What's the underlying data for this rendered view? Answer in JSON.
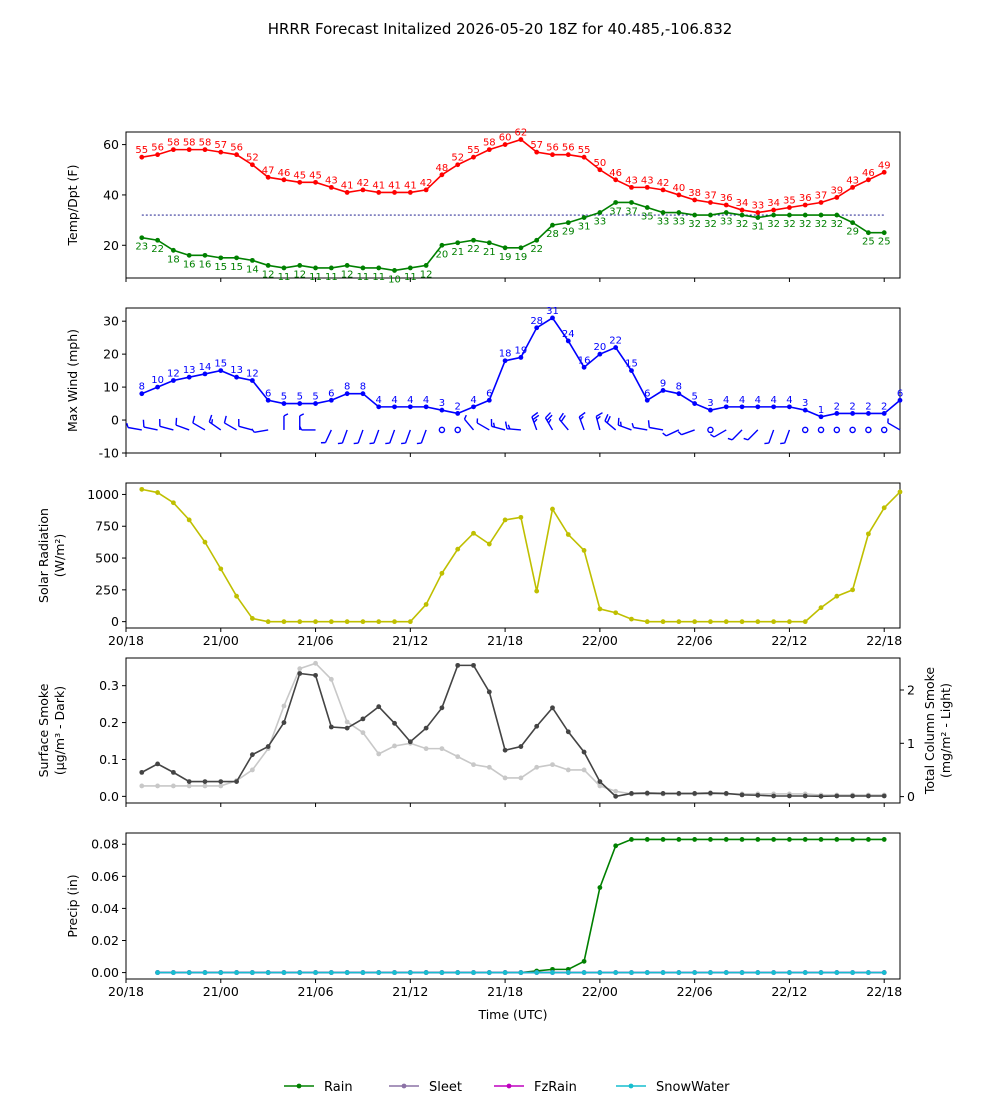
{
  "page": {
    "title": "HRRR Forecast Initalized 2026-05-20 18Z for 40.485,-106.832",
    "xlabel": "Time (UTC)"
  },
  "colors": {
    "temp": "#ff0000",
    "dewpoint": "#008000",
    "wind": "#0000ff",
    "solar": "#bfbf00",
    "smoke_dark": "#444444",
    "smoke_light": "#c8c8c8",
    "rain": "#008000",
    "sleet": "#8c72a6",
    "fzrain": "#bf00bf",
    "snowwater": "#17becf"
  },
  "legend": {
    "items": [
      {
        "label": "Rain",
        "color": "#008000"
      },
      {
        "label": "Sleet",
        "color": "#8c72a6"
      },
      {
        "label": "FzRain",
        "color": "#bf00bf"
      },
      {
        "label": "SnowWater",
        "color": "#17becf"
      }
    ]
  },
  "chart_data": [
    {
      "id": "temp",
      "type": "line",
      "ylabel": [
        "Temp/Dpt (F)"
      ],
      "ylim": [
        7,
        65
      ],
      "yticks": [
        20,
        40,
        60
      ],
      "xlim": [
        0,
        49
      ],
      "xticks": [
        0,
        6,
        12,
        18,
        24,
        30,
        36,
        42,
        48
      ],
      "xticklabels": [],
      "hline": 32,
      "series": [
        {
          "key": "temp",
          "x_start": 1,
          "values": [
            55,
            56,
            58,
            58,
            58,
            57,
            56,
            52,
            47,
            46,
            45,
            45,
            43,
            41,
            42,
            41,
            41,
            41,
            42,
            48,
            52,
            55,
            58,
            60,
            62,
            57,
            56,
            56,
            55,
            50,
            46,
            43,
            43,
            42,
            40,
            38,
            37,
            36,
            34,
            33,
            34,
            35,
            36,
            37,
            39,
            43,
            46,
            49
          ],
          "labels": [
            "55",
            "56",
            "58",
            "58",
            "58",
            "57",
            "56",
            "52",
            "47",
            "46",
            "45",
            "45",
            "43",
            "41",
            "42",
            "41",
            "41",
            "41",
            "42",
            "48",
            "52",
            "55",
            "58",
            "60",
            "62",
            "57",
            "56",
            "56",
            "55",
            "50",
            "46",
            "43",
            "43",
            "42",
            "40",
            "38",
            "37",
            "36",
            "34",
            "33",
            "34",
            "35",
            "36",
            "37",
            "39",
            "43",
            "46",
            "49"
          ]
        },
        {
          "key": "dewpoint",
          "x_start": 1,
          "values": [
            23,
            22,
            18,
            16,
            16,
            15,
            15,
            14,
            12,
            11,
            12,
            11,
            11,
            12,
            11,
            11,
            10,
            11,
            12,
            20,
            21,
            22,
            21,
            19,
            19,
            22,
            28,
            29,
            31,
            33,
            37,
            37,
            35,
            33,
            33,
            32,
            32,
            33,
            32,
            31,
            32,
            32,
            32,
            32,
            32,
            29,
            25,
            25
          ],
          "labels": [
            "23",
            "22",
            "18",
            "16",
            "16",
            "15",
            "15",
            "14",
            "12",
            "11",
            "12",
            "11",
            "11",
            "12",
            "11",
            "11",
            "10",
            "11",
            "12",
            "20",
            "21",
            "22",
            "21",
            "19",
            "19",
            "22",
            "28",
            "29",
            "31",
            "33",
            "37",
            "37",
            "35",
            "33",
            "33",
            "32",
            "32",
            "33",
            "32",
            "31",
            "32",
            "32",
            "32",
            "32",
            "32",
            "29",
            "25",
            "25"
          ]
        }
      ]
    },
    {
      "id": "wind",
      "type": "line",
      "ylabel": [
        "Max Wind (mph)"
      ],
      "ylim": [
        -10,
        34
      ],
      "yticks": [
        -10,
        0,
        10,
        20,
        30
      ],
      "xlim": [
        0,
        49
      ],
      "xticks": [
        0,
        6,
        12,
        18,
        24,
        30,
        36,
        42,
        48
      ],
      "xticklabels": [],
      "series": [
        {
          "key": "wind",
          "x_start": 1,
          "values": [
            8,
            10,
            12,
            13,
            14,
            15,
            13,
            12,
            6,
            5,
            5,
            5,
            6,
            8,
            8,
            4,
            4,
            4,
            4,
            3,
            2,
            4,
            6,
            18,
            19,
            28,
            31,
            24,
            16,
            20,
            22,
            15,
            6,
            9,
            8,
            5,
            3,
            4,
            4,
            4,
            4,
            4,
            3,
            1,
            2,
            2,
            2,
            2,
            6
          ],
          "labels": [
            "8",
            "10",
            "12",
            "13",
            "14",
            "15",
            "13",
            "12",
            "6",
            "5",
            "5",
            "5",
            "6",
            "8",
            "8",
            "4",
            "4",
            "4",
            "4",
            "3",
            "2",
            "4",
            "6",
            "18",
            "19",
            "28",
            "31",
            "24",
            "16",
            "20",
            "22",
            "15",
            "6",
            "9",
            "8",
            "5",
            "3",
            "4",
            "4",
            "4",
            "4",
            "4",
            "3",
            "1",
            "2",
            "2",
            "2",
            "2",
            "6"
          ]
        }
      ],
      "barbs": {
        "speeds": [
          8,
          10,
          12,
          13,
          14,
          15,
          13,
          12,
          6,
          5,
          5,
          5,
          6,
          8,
          8,
          4,
          4,
          4,
          4,
          3,
          2,
          4,
          6,
          18,
          19,
          28,
          31,
          24,
          16,
          20,
          22,
          15,
          6,
          9,
          8,
          5,
          3,
          4,
          4,
          4,
          4,
          4,
          3,
          1,
          2,
          2,
          2,
          2,
          6
        ],
        "directions_deg": [
          280,
          282,
          285,
          290,
          300,
          305,
          300,
          285,
          260,
          0,
          0,
          270,
          205,
          200,
          200,
          200,
          200,
          200,
          200,
          0,
          0,
          320,
          300,
          285,
          275,
          340,
          330,
          320,
          340,
          345,
          310,
          290,
          280,
          280,
          245,
          250,
          0,
          240,
          225,
          225,
          200,
          200,
          0,
          0,
          0,
          0,
          0,
          0,
          300
        ]
      }
    },
    {
      "id": "solar",
      "type": "line",
      "ylabel": [
        "Solar Radiation",
        "(W/m²)"
      ],
      "ylim": [
        -50,
        1090
      ],
      "yticks": [
        0,
        250,
        500,
        750,
        1000
      ],
      "xlim": [
        0,
        49
      ],
      "xticks": [
        0,
        6,
        12,
        18,
        24,
        30,
        36,
        42,
        48
      ],
      "xticklabels": [
        "20/18",
        "21/00",
        "21/06",
        "21/12",
        "21/18",
        "22/00",
        "22/06",
        "22/12",
        "22/18"
      ],
      "series": [
        {
          "key": "solar",
          "x_start": 1,
          "values": [
            1040,
            1015,
            935,
            800,
            625,
            415,
            200,
            25,
            0,
            0,
            0,
            0,
            0,
            0,
            0,
            0,
            0,
            0,
            135,
            380,
            570,
            695,
            610,
            800,
            820,
            240,
            885,
            685,
            560,
            100,
            70,
            20,
            0,
            0,
            0,
            0,
            0,
            0,
            0,
            0,
            0,
            0,
            0,
            110,
            200,
            250,
            690,
            895,
            1020
          ]
        }
      ]
    },
    {
      "id": "smoke",
      "type": "line",
      "ylabel": [
        "Surface Smoke",
        "(μg/m³ - Dark)"
      ],
      "ylabel_right": [
        "Total Column Smoke",
        "(mg/m² - Light)"
      ],
      "ylim": [
        -0.018,
        0.375
      ],
      "yticks": [
        0.0,
        0.1,
        0.2,
        0.3
      ],
      "ylim_right": [
        -0.12,
        2.6
      ],
      "yticks_right": [
        0,
        1,
        2
      ],
      "xlim": [
        0,
        49
      ],
      "xticks": [
        0,
        6,
        12,
        18,
        24,
        30,
        36,
        42,
        48
      ],
      "xticklabels": [],
      "series": [
        {
          "key": "smoke_light",
          "axis": "right",
          "x_start": 1,
          "values": [
            0.2,
            0.2,
            0.2,
            0.2,
            0.2,
            0.2,
            0.3,
            0.5,
            0.9,
            1.7,
            2.4,
            2.5,
            2.2,
            1.4,
            1.2,
            0.8,
            0.95,
            1.0,
            0.9,
            0.9,
            0.75,
            0.6,
            0.55,
            0.35,
            0.35,
            0.55,
            0.6,
            0.5,
            0.5,
            0.2,
            0.1,
            0.05,
            0.05,
            0.05,
            0.05,
            0.05,
            0.05,
            0.05,
            0.05,
            0.05,
            0.05,
            0.05,
            0.05,
            0.03,
            0.03,
            0.03,
            0.03,
            0.03
          ]
        },
        {
          "key": "smoke_dark",
          "axis": "left",
          "x_start": 1,
          "values": [
            0.065,
            0.088,
            0.065,
            0.04,
            0.04,
            0.04,
            0.04,
            0.113,
            0.135,
            0.2,
            0.333,
            0.328,
            0.188,
            0.185,
            0.21,
            0.243,
            0.198,
            0.148,
            0.185,
            0.24,
            0.355,
            0.355,
            0.283,
            0.125,
            0.135,
            0.19,
            0.24,
            0.175,
            0.12,
            0.04,
            0.0,
            0.008,
            0.009,
            0.008,
            0.008,
            0.008,
            0.009,
            0.008,
            0.004,
            0.003,
            0.001,
            0.001,
            0.001,
            0.0,
            0.001,
            0.001,
            0.001,
            0.001
          ]
        }
      ]
    },
    {
      "id": "precip",
      "type": "line",
      "ylabel": [
        "Precip (in)"
      ],
      "ylim": [
        -0.004,
        0.087
      ],
      "yticks": [
        0.0,
        0.02,
        0.04,
        0.06,
        0.08
      ],
      "xlim": [
        0,
        49
      ],
      "xticks": [
        0,
        6,
        12,
        18,
        24,
        30,
        36,
        42,
        48
      ],
      "xticklabels": [
        "20/18",
        "21/00",
        "21/06",
        "21/12",
        "21/18",
        "22/00",
        "22/06",
        "22/12",
        "22/18"
      ],
      "xlabel": "Time (UTC)",
      "series": [
        {
          "key": "rain",
          "x_start": 2,
          "values": [
            0,
            0,
            0,
            0,
            0,
            0,
            0,
            0,
            0,
            0,
            0,
            0,
            0,
            0,
            0,
            0,
            0,
            0,
            0,
            0,
            0,
            0,
            0,
            0,
            0.001,
            0.002,
            0.002,
            0.007,
            0.053,
            0.079,
            0.083,
            0.083,
            0.083,
            0.083,
            0.083,
            0.083,
            0.083,
            0.083,
            0.083,
            0.083,
            0.083,
            0.083,
            0.083,
            0.083,
            0.083,
            0.083,
            0.083
          ]
        },
        {
          "key": "sleet",
          "x_start": 2,
          "values": [
            0,
            0,
            0,
            0,
            0,
            0,
            0,
            0,
            0,
            0,
            0,
            0,
            0,
            0,
            0,
            0,
            0,
            0,
            0,
            0,
            0,
            0,
            0,
            0,
            0,
            0,
            0,
            0,
            0,
            0,
            0,
            0,
            0,
            0,
            0,
            0,
            0,
            0,
            0,
            0,
            0,
            0,
            0,
            0,
            0,
            0,
            0
          ]
        },
        {
          "key": "fzrain",
          "x_start": 2,
          "values": [
            0,
            0,
            0,
            0,
            0,
            0,
            0,
            0,
            0,
            0,
            0,
            0,
            0,
            0,
            0,
            0,
            0,
            0,
            0,
            0,
            0,
            0,
            0,
            0,
            0,
            0,
            0,
            0,
            0,
            0,
            0,
            0,
            0,
            0,
            0,
            0,
            0,
            0,
            0,
            0,
            0,
            0,
            0,
            0,
            0,
            0,
            0
          ]
        },
        {
          "key": "snowwater",
          "x_start": 2,
          "values": [
            0,
            0,
            0,
            0,
            0,
            0,
            0,
            0,
            0,
            0,
            0,
            0,
            0,
            0,
            0,
            0,
            0,
            0,
            0,
            0,
            0,
            0,
            0,
            0,
            0,
            0,
            0,
            0,
            0,
            0,
            0,
            0,
            0,
            0,
            0,
            0,
            0,
            0,
            0,
            0,
            0,
            0,
            0,
            0,
            0,
            0,
            0
          ]
        }
      ]
    }
  ]
}
